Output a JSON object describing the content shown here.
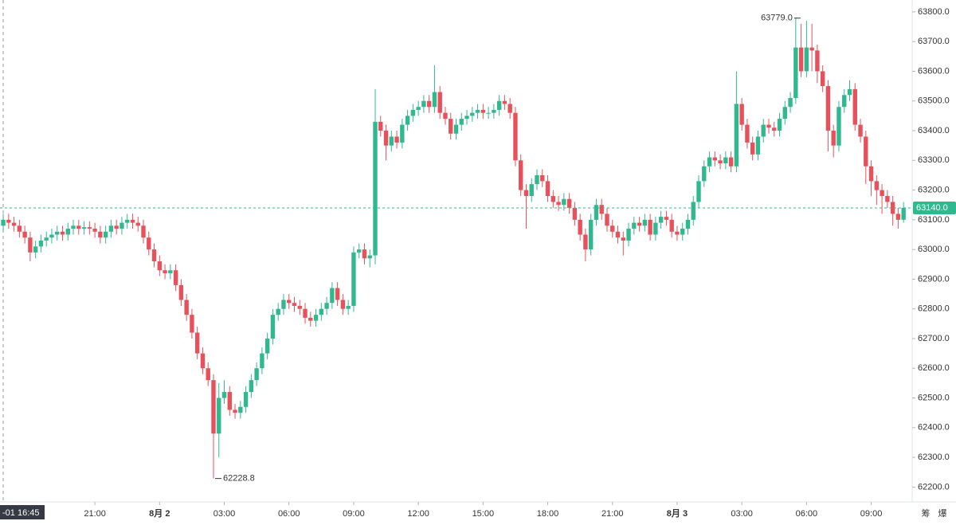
{
  "chart_data": {
    "type": "candlestick",
    "up_color": "#30b98e",
    "down_color": "#e8515b",
    "ylim": [
      62150,
      63840
    ],
    "yticks": [
      {
        "value": 62200,
        "label": "62200.0"
      },
      {
        "value": 62300,
        "label": "62300.0"
      },
      {
        "value": 62400,
        "label": "62400.0"
      },
      {
        "value": 62500,
        "label": "62500.0"
      },
      {
        "value": 62600,
        "label": "62600.0"
      },
      {
        "value": 62700,
        "label": "62700.0"
      },
      {
        "value": 62800,
        "label": "62800.0"
      },
      {
        "value": 62900,
        "label": "62900.0"
      },
      {
        "value": 63000,
        "label": "63000.0"
      },
      {
        "value": 63100,
        "label": "63100.0"
      },
      {
        "value": 63200,
        "label": "63200.0"
      },
      {
        "value": 63300,
        "label": "63300.0"
      },
      {
        "value": 63400,
        "label": "63400.0"
      },
      {
        "value": 63500,
        "label": "63500.0"
      },
      {
        "value": 63600,
        "label": "63600.0"
      },
      {
        "value": 63700,
        "label": "63700.0"
      },
      {
        "value": 63800,
        "label": "63800.0"
      }
    ],
    "xlim": [
      -0.6,
      168.6
    ],
    "xticks": [
      {
        "value": 17,
        "label": "21:00"
      },
      {
        "value": 29,
        "label": "8月 2"
      },
      {
        "value": 41,
        "label": "03:00"
      },
      {
        "value": 53,
        "label": "06:00"
      },
      {
        "value": 65,
        "label": "09:00"
      },
      {
        "value": 77,
        "label": "12:00"
      },
      {
        "value": 89,
        "label": "15:00"
      },
      {
        "value": 101,
        "label": "18:00"
      },
      {
        "value": 113,
        "label": "21:00"
      },
      {
        "value": 125,
        "label": "8月 3"
      },
      {
        "value": 137,
        "label": "03:00"
      },
      {
        "value": 149,
        "label": "06:00"
      },
      {
        "value": 161,
        "label": "09:00"
      }
    ],
    "crosshair_label": "-01 16:45",
    "last_price": {
      "value": 63140,
      "label": "63140.0"
    },
    "high_label": {
      "value": 63779,
      "label": "63779.0",
      "index": 147
    },
    "low_label": {
      "value": 62228.8,
      "label": "62228.8",
      "index": 39
    },
    "toolbar": [
      "筹",
      "爆"
    ],
    "open": [
      63080,
      63100,
      63090,
      63080,
      63060,
      63040,
      62990,
      63010,
      63030,
      63040,
      63050,
      63060,
      63050,
      63070,
      63080,
      63070,
      63075,
      63070,
      63060,
      63040,
      63060,
      63080,
      63070,
      63090,
      63100,
      63090,
      63080,
      63040,
      63000,
      62960,
      62930,
      62920,
      62930,
      62880,
      62830,
      62780,
      62720,
      62650,
      62600,
      62560,
      62380,
      62500,
      62520,
      62460,
      62450,
      62470,
      62520,
      62560,
      62600,
      62650,
      62700,
      62780,
      62800,
      62830,
      62820,
      62810,
      62800,
      62770,
      62760,
      62780,
      62800,
      62820,
      62870,
      62830,
      62800,
      62810,
      62990,
      63000,
      62970,
      62980,
      63430,
      63400,
      63350,
      63380,
      63360,
      63420,
      63450,
      63470,
      63480,
      63500,
      63480,
      63530,
      63460,
      63440,
      63390,
      63420,
      63440,
      63450,
      63460,
      63470,
      63460,
      63460,
      63470,
      63500,
      63490,
      63460,
      63300,
      63200,
      63180,
      63220,
      63250,
      63230,
      63180,
      63160,
      63150,
      63170,
      63140,
      63100,
      63050,
      63000,
      63100,
      63150,
      63120,
      63080,
      63060,
      63040,
      63030,
      63070,
      63090,
      63080,
      63100,
      63050,
      63090,
      63110,
      63100,
      63060,
      63050,
      63070,
      63100,
      63160,
      63230,
      63280,
      63310,
      63300,
      63290,
      63310,
      63280,
      63490,
      63420,
      63360,
      63320,
      63380,
      63420,
      63410,
      63400,
      63440,
      63480,
      63510,
      63680,
      63600,
      63680,
      63670,
      63600,
      63550,
      63400,
      63350,
      63480,
      63520,
      63540,
      63420,
      63380,
      63280,
      63230,
      63200,
      63180,
      63160,
      63120,
      63100
    ],
    "high": [
      63120,
      63120,
      63110,
      63100,
      63080,
      63060,
      63030,
      63050,
      63060,
      63070,
      63080,
      63080,
      63090,
      63100,
      63100,
      63095,
      63095,
      63090,
      63080,
      63080,
      63100,
      63100,
      63110,
      63120,
      63120,
      63110,
      63100,
      63060,
      63020,
      62980,
      62950,
      62950,
      62950,
      62900,
      62850,
      62800,
      62740,
      62670,
      62620,
      62580,
      62550,
      62560,
      62540,
      62480,
      62490,
      62540,
      62580,
      62620,
      62670,
      62720,
      62800,
      62820,
      62850,
      62850,
      62840,
      62830,
      62820,
      62790,
      62800,
      62820,
      62840,
      62890,
      62890,
      62850,
      62830,
      63010,
      63020,
      63020,
      63000,
      63540,
      63450,
      63420,
      63400,
      63400,
      63440,
      63470,
      63490,
      63500,
      63520,
      63520,
      63620,
      63550,
      63480,
      63460,
      63440,
      63460,
      63470,
      63480,
      63490,
      63490,
      63480,
      63490,
      63520,
      63520,
      63510,
      63480,
      63320,
      63220,
      63240,
      63270,
      63270,
      63250,
      63200,
      63180,
      63190,
      63190,
      63160,
      63120,
      63070,
      63120,
      63170,
      63170,
      63140,
      63100,
      63080,
      63060,
      63090,
      63110,
      63110,
      63120,
      63120,
      63110,
      63130,
      63130,
      63120,
      63080,
      63090,
      63120,
      63180,
      63250,
      63300,
      63330,
      63330,
      63320,
      63330,
      63330,
      63600,
      63510,
      63440,
      63380,
      63400,
      63440,
      63440,
      63430,
      63460,
      63500,
      63530,
      63779,
      63760,
      63770,
      63760,
      63690,
      63620,
      63570,
      63420,
      63500,
      63540,
      63570,
      63560,
      63440,
      63400,
      63300,
      63250,
      63220,
      63200,
      63180,
      63140,
      63160
    ],
    "low": [
      63060,
      63070,
      63060,
      63040,
      63020,
      62960,
      62970,
      62990,
      63010,
      63020,
      63030,
      63030,
      63030,
      63050,
      63050,
      63050,
      63050,
      63040,
      63020,
      63020,
      63040,
      63050,
      63050,
      63070,
      63070,
      63060,
      63020,
      62980,
      62940,
      62910,
      62900,
      62900,
      62860,
      62810,
      62760,
      62700,
      62630,
      62580,
      62540,
      62228.8,
      62300,
      62480,
      62440,
      62430,
      62430,
      62450,
      62500,
      62540,
      62580,
      62630,
      62680,
      62760,
      62780,
      62800,
      62790,
      62780,
      62750,
      62740,
      62740,
      62760,
      62780,
      62800,
      62810,
      62780,
      62780,
      62790,
      62970,
      62950,
      62940,
      62950,
      63380,
      63300,
      63330,
      63340,
      63340,
      63400,
      63430,
      63450,
      63460,
      63460,
      63460,
      63440,
      63420,
      63370,
      63370,
      63400,
      63420,
      63430,
      63440,
      63440,
      63440,
      63440,
      63450,
      63470,
      63440,
      63280,
      63180,
      63070,
      63160,
      63200,
      63210,
      63160,
      63140,
      63130,
      63130,
      63120,
      63080,
      63030,
      62960,
      62980,
      63080,
      63100,
      63060,
      63040,
      63020,
      62980,
      63010,
      63050,
      63060,
      63060,
      63030,
      63030,
      63070,
      63080,
      63040,
      63030,
      63030,
      63050,
      63080,
      63140,
      63210,
      63260,
      63280,
      63270,
      63270,
      63260,
      63260,
      63400,
      63340,
      63300,
      63300,
      63360,
      63390,
      63380,
      63380,
      63420,
      63460,
      63490,
      63580,
      63580,
      63600,
      63560,
      63530,
      63330,
      63310,
      63330,
      63460,
      63500,
      63400,
      63360,
      63220,
      63180,
      63150,
      63120,
      63140,
      63080,
      63070,
      63090
    ],
    "close": [
      63100,
      63090,
      63080,
      63060,
      63040,
      62990,
      63010,
      63030,
      63040,
      63050,
      63060,
      63050,
      63070,
      63080,
      63070,
      63075,
      63070,
      63060,
      63040,
      63060,
      63080,
      63070,
      63090,
      63100,
      63090,
      63080,
      63040,
      63000,
      62960,
      62930,
      62920,
      62930,
      62880,
      62830,
      62780,
      62720,
      62650,
      62600,
      62560,
      62380,
      62500,
      62520,
      62460,
      62450,
      62470,
      62520,
      62560,
      62600,
      62650,
      62700,
      62780,
      62800,
      62830,
      62820,
      62810,
      62800,
      62770,
      62760,
      62780,
      62800,
      62820,
      62870,
      62830,
      62800,
      62810,
      62990,
      63000,
      62970,
      62980,
      63430,
      63400,
      63350,
      63380,
      63360,
      63420,
      63450,
      63470,
      63480,
      63500,
      63480,
      63530,
      63460,
      63440,
      63390,
      63420,
      63440,
      63450,
      63460,
      63470,
      63460,
      63460,
      63470,
      63500,
      63490,
      63460,
      63300,
      63200,
      63180,
      63220,
      63250,
      63230,
      63180,
      63160,
      63150,
      63170,
      63140,
      63100,
      63050,
      63000,
      63100,
      63150,
      63120,
      63080,
      63060,
      63040,
      63030,
      63070,
      63090,
      63080,
      63100,
      63050,
      63090,
      63110,
      63100,
      63060,
      63050,
      63070,
      63100,
      63160,
      63230,
      63280,
      63310,
      63300,
      63290,
      63310,
      63280,
      63490,
      63420,
      63360,
      63320,
      63380,
      63420,
      63410,
      63400,
      63440,
      63480,
      63510,
      63680,
      63600,
      63680,
      63670,
      63600,
      63550,
      63400,
      63350,
      63480,
      63520,
      63540,
      63420,
      63380,
      63280,
      63230,
      63200,
      63180,
      63160,
      63120,
      63100,
      63140
    ]
  }
}
